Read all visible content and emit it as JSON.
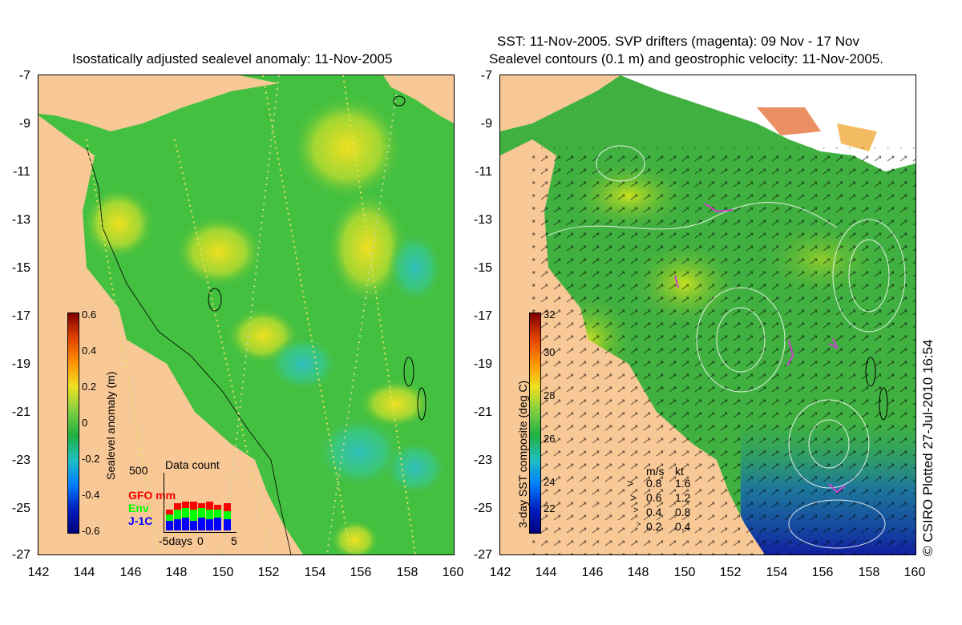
{
  "left_panel": {
    "title": "Isostatically adjusted sealevel anomaly: 11-Nov-2005",
    "colorbar": {
      "title": "Sealevel anomaly (m)",
      "ticks": [
        "0.6",
        "0.4",
        "0.2",
        "0",
        "-0.2",
        "-0.4",
        "-0.6"
      ]
    },
    "data_count": {
      "title": "Data count",
      "max_label": "500",
      "series": [
        {
          "name": "GFO mm",
          "color": "#ff0000"
        },
        {
          "name": "Env",
          "color": "#00ff00"
        },
        {
          "name": "J-1C",
          "color": "#0000ff"
        }
      ],
      "x_ticks": [
        "-5days",
        "0",
        "5"
      ]
    }
  },
  "right_panel": {
    "title_line1": "SST: 11-Nov-2005. SVP drifters (magenta): 09 Nov - 17 Nov",
    "title_line2": "Sealevel contours (0.1 m) and geostrophic velocity: 11-Nov-2005.",
    "colorbar": {
      "title": "3-day SST composite (deg C)",
      "ticks": [
        "32",
        "30",
        "28",
        "26",
        "24",
        "22"
      ]
    },
    "velocity_legend": {
      "header_ms": "m/s",
      "header_kt": "kt",
      "rows": [
        {
          "ms": "0.8",
          "kt": "1.6"
        },
        {
          "ms": "0.6",
          "kt": "1.2"
        },
        {
          "ms": "0.4",
          "kt": "0.8"
        },
        {
          "ms": "0.2",
          "kt": "0.4"
        }
      ]
    }
  },
  "axes": {
    "lat_ticks": [
      "-7",
      "-9",
      "-11",
      "-13",
      "-15",
      "-17",
      "-19",
      "-21",
      "-23",
      "-25",
      "-27"
    ],
    "lon_ticks": [
      "142",
      "144",
      "146",
      "148",
      "150",
      "152",
      "154",
      "156",
      "158",
      "160"
    ]
  },
  "copyright": "© CSIRO Plotted 27-Jul-2010 16:54",
  "colors": {
    "land": "#f8c896",
    "ocean_sla": "#44c040",
    "ocean_sst": "#40b040"
  }
}
